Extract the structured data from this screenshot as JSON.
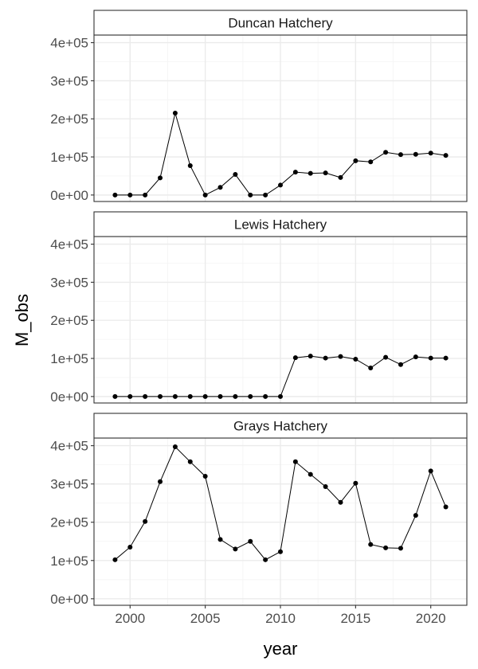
{
  "chart_data": {
    "type": "line",
    "xlabel": "year",
    "ylabel": "M_obs",
    "xlim": [
      1997.6,
      2022.4
    ],
    "ylim": [
      -17000,
      420000
    ],
    "x_ticks": [
      2000,
      2005,
      2010,
      2015,
      2020
    ],
    "y_ticks": [
      0,
      100000,
      200000,
      300000,
      400000
    ],
    "y_tick_labels": [
      "0e+00",
      "1e+05",
      "2e+05",
      "3e+05",
      "4e+05"
    ],
    "grid": true,
    "colors": {
      "line": "#000000",
      "point": "#000000",
      "grid": "#ebebeb",
      "border": "#333333"
    },
    "x": [
      1999,
      2000,
      2001,
      2002,
      2003,
      2004,
      2005,
      2006,
      2007,
      2008,
      2009,
      2010,
      2011,
      2012,
      2013,
      2014,
      2015,
      2016,
      2017,
      2018,
      2019,
      2020,
      2021
    ],
    "panels": [
      {
        "name": "Duncan Hatchery",
        "values": [
          0,
          0,
          0,
          45000,
          215000,
          77000,
          0,
          20000,
          54000,
          0,
          0,
          26000,
          60000,
          57000,
          58000,
          46000,
          90000,
          87000,
          112000,
          106000,
          107000,
          110000,
          104000
        ]
      },
      {
        "name": "Lewis Hatchery",
        "values": [
          0,
          0,
          0,
          0,
          0,
          0,
          0,
          0,
          0,
          0,
          0,
          0,
          102000,
          106000,
          101000,
          105000,
          98000,
          75000,
          103000,
          84000,
          104000,
          101000,
          101000
        ]
      },
      {
        "name": "Grays Hatchery",
        "values": [
          102000,
          135000,
          202000,
          306000,
          397000,
          358000,
          320000,
          155000,
          130000,
          150000,
          102000,
          123000,
          358000,
          325000,
          293000,
          252000,
          302000,
          142000,
          133000,
          132000,
          218000,
          334000,
          240000
        ]
      }
    ]
  }
}
